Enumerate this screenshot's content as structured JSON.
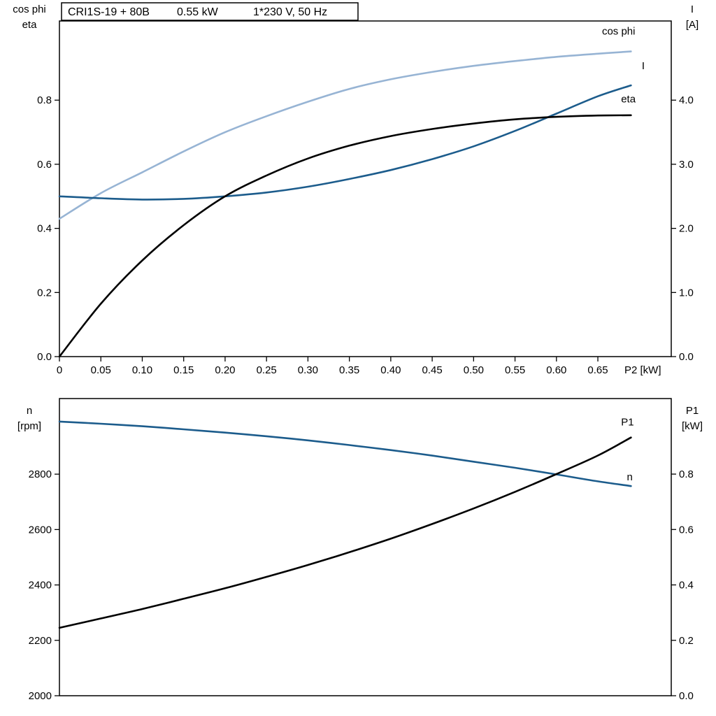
{
  "accent_colors": {
    "dark_blue": "#1c5c8c",
    "light_blue": "#97b4d4",
    "black": "#000000"
  },
  "chart_data": [
    {
      "type": "line",
      "title": "CRI1S-19 + 80B   0.55 kW   1*230 V, 50 Hz",
      "title_segments": [
        "CRI1S-19 + 80B",
        "0.55 kW",
        "1*230 V, 50 Hz"
      ],
      "xlabel": "P2 [kW]",
      "xlim": [
        0,
        0.7386
      ],
      "x": [
        0,
        0.05,
        0.1,
        0.15,
        0.2,
        0.25,
        0.3,
        0.35,
        0.4,
        0.45,
        0.5,
        0.55,
        0.6,
        0.65,
        0.69
      ],
      "xticks": [
        {
          "v": 0,
          "label": "0"
        },
        {
          "v": 0.05,
          "label": "0.05"
        },
        {
          "v": 0.1,
          "label": "0.10"
        },
        {
          "v": 0.15,
          "label": "0.15"
        },
        {
          "v": 0.2,
          "label": "0.20"
        },
        {
          "v": 0.25,
          "label": "0.25"
        },
        {
          "v": 0.3,
          "label": "0.30"
        },
        {
          "v": 0.35,
          "label": "0.35"
        },
        {
          "v": 0.4,
          "label": "0.40"
        },
        {
          "v": 0.45,
          "label": "0.45"
        },
        {
          "v": 0.5,
          "label": "0.50"
        },
        {
          "v": 0.55,
          "label": "0.55"
        },
        {
          "v": 0.6,
          "label": "0.60"
        },
        {
          "v": 0.65,
          "label": "0.65"
        }
      ],
      "left_axis": {
        "title_lines": [
          "cos phi",
          "eta"
        ],
        "lim": [
          0,
          1.047
        ],
        "ticks": [
          {
            "v": 0.0,
            "label": "0.0"
          },
          {
            "v": 0.2,
            "label": "0.2"
          },
          {
            "v": 0.4,
            "label": "0.4"
          },
          {
            "v": 0.6,
            "label": "0.6"
          },
          {
            "v": 0.8,
            "label": "0.8"
          }
        ]
      },
      "right_axis": {
        "title_lines": [
          "I",
          "[A]"
        ],
        "lim": [
          0,
          5.235
        ],
        "ticks": [
          {
            "v": 0.0,
            "label": "0.0"
          },
          {
            "v": 1.0,
            "label": "1.0"
          },
          {
            "v": 2.0,
            "label": "2.0"
          },
          {
            "v": 3.0,
            "label": "3.0"
          },
          {
            "v": 4.0,
            "label": "4.0"
          }
        ]
      },
      "series": [
        {
          "id": "cos-phi",
          "name": "cos phi",
          "axis": "left",
          "color": "#97b4d4",
          "values": [
            0.43,
            0.51,
            0.575,
            0.64,
            0.7,
            0.75,
            0.795,
            0.835,
            0.865,
            0.888,
            0.907,
            0.922,
            0.935,
            0.945,
            0.952
          ],
          "label_pos": {
            "x": 0.655,
            "y": 1.005
          }
        },
        {
          "id": "i",
          "name": "I",
          "axis": "right",
          "color": "#1c5c8c",
          "values": [
            2.5,
            2.47,
            2.45,
            2.46,
            2.5,
            2.56,
            2.65,
            2.77,
            2.91,
            3.08,
            3.28,
            3.52,
            3.79,
            4.06,
            4.23
          ],
          "label_pos": {
            "x": 0.703,
            "y": 4.48
          }
        },
        {
          "id": "eta",
          "name": "eta",
          "axis": "left",
          "color": "#000000",
          "values": [
            0.0,
            0.165,
            0.3,
            0.41,
            0.5,
            0.565,
            0.618,
            0.658,
            0.688,
            0.71,
            0.727,
            0.74,
            0.748,
            0.752,
            0.753
          ],
          "label_pos": {
            "x": 0.678,
            "y": 0.793
          }
        }
      ]
    },
    {
      "type": "line",
      "title": "",
      "xlabel": "",
      "xlim": [
        0,
        0.7386
      ],
      "x": [
        0,
        0.05,
        0.1,
        0.15,
        0.2,
        0.25,
        0.3,
        0.35,
        0.4,
        0.45,
        0.5,
        0.55,
        0.6,
        0.65,
        0.69
      ],
      "xticks": [],
      "left_axis": {
        "title_lines": [
          "n",
          "[rpm]"
        ],
        "lim": [
          2000,
          3073
        ],
        "ticks": [
          {
            "v": 2000,
            "label": "2000"
          },
          {
            "v": 2200,
            "label": "2200"
          },
          {
            "v": 2400,
            "label": "2400"
          },
          {
            "v": 2600,
            "label": "2600"
          },
          {
            "v": 2800,
            "label": "2800"
          }
        ]
      },
      "right_axis": {
        "title_lines": [
          "P1",
          "[kW]"
        ],
        "lim": [
          0,
          1.0727
        ],
        "ticks": [
          {
            "v": 0.0,
            "label": "0.0"
          },
          {
            "v": 0.2,
            "label": "0.2"
          },
          {
            "v": 0.4,
            "label": "0.4"
          },
          {
            "v": 0.6,
            "label": "0.6"
          },
          {
            "v": 0.8,
            "label": "0.8"
          }
        ]
      },
      "series": [
        {
          "id": "n",
          "name": "n",
          "axis": "left",
          "color": "#1c5c8c",
          "values": [
            2990,
            2982,
            2973,
            2962,
            2950,
            2937,
            2922,
            2905,
            2887,
            2867,
            2845,
            2823,
            2799,
            2774,
            2757
          ],
          "label_pos": {
            "x": 0.685,
            "y": 2778
          }
        },
        {
          "id": "p1",
          "name": "P1",
          "axis": "right",
          "color": "#000000",
          "values": [
            0.245,
            0.279,
            0.313,
            0.35,
            0.388,
            0.429,
            0.472,
            0.518,
            0.567,
            0.62,
            0.676,
            0.736,
            0.8,
            0.867,
            0.932
          ],
          "label_pos": {
            "x": 0.678,
            "y": 0.975
          }
        }
      ]
    }
  ]
}
